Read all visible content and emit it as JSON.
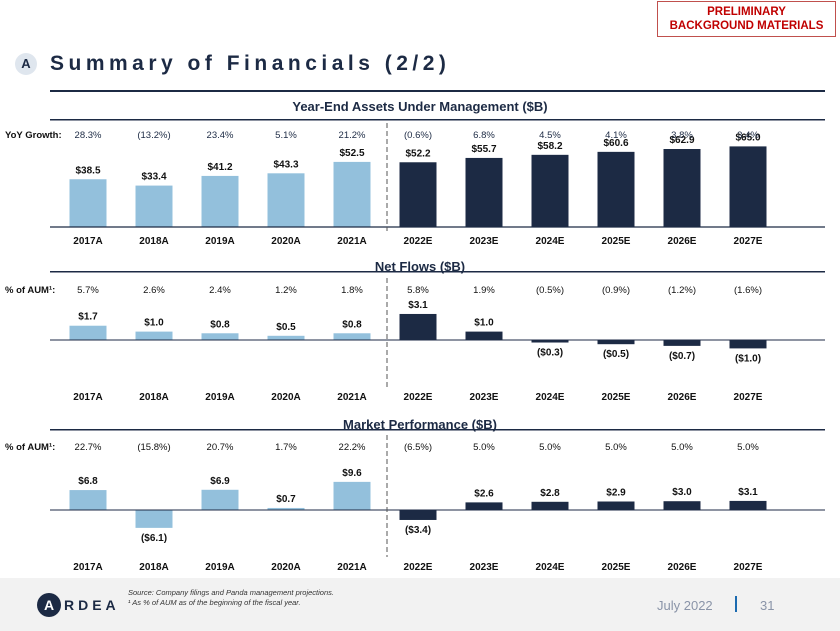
{
  "stamp": {
    "line1": "PRELIMINARY",
    "line2": "BACKGROUND MATERIALS"
  },
  "section_badge": "A",
  "page_title": "Summary of Financials (2/2)",
  "colors": {
    "actual": "#93c0dc",
    "estimate": "#1c2a44",
    "accent": "#1c6bb0",
    "stamp": "#c00000"
  },
  "chart_data": [
    {
      "type": "bar",
      "title": "Year-End Assets Under Management ($B)",
      "row_label": "YoY Growth:",
      "categories": [
        "2017A",
        "2018A",
        "2019A",
        "2020A",
        "2021A",
        "2022E",
        "2023E",
        "2024E",
        "2025E",
        "2026E",
        "2027E"
      ],
      "values": [
        38.5,
        33.4,
        41.2,
        43.3,
        52.5,
        52.2,
        55.7,
        58.2,
        60.6,
        62.9,
        65.0
      ],
      "value_labels": [
        "$38.5",
        "$33.4",
        "$41.2",
        "$43.3",
        "$52.5",
        "$52.2",
        "$55.7",
        "$58.2",
        "$60.6",
        "$62.9",
        "$65.0"
      ],
      "row_values": [
        "28.3%",
        "(13.2%)",
        "23.4%",
        "5.1%",
        "21.2%",
        "(0.6%)",
        "6.8%",
        "4.5%",
        "4.1%",
        "3.8%",
        "3.4%"
      ]
    },
    {
      "type": "bar",
      "title": "Net Flows ($B)",
      "row_label": "% of AUM¹:",
      "categories": [
        "2017A",
        "2018A",
        "2019A",
        "2020A",
        "2021A",
        "2022E",
        "2023E",
        "2024E",
        "2025E",
        "2026E",
        "2027E"
      ],
      "values": [
        1.7,
        1.0,
        0.8,
        0.5,
        0.8,
        3.1,
        1.0,
        -0.3,
        -0.5,
        -0.7,
        -1.0
      ],
      "value_labels": [
        "$1.7",
        "$1.0",
        "$0.8",
        "$0.5",
        "$0.8",
        "$3.1",
        "$1.0",
        "($0.3)",
        "($0.5)",
        "($0.7)",
        "($1.0)"
      ],
      "row_values": [
        "5.7%",
        "2.6%",
        "2.4%",
        "1.2%",
        "1.8%",
        "5.8%",
        "1.9%",
        "(0.5%)",
        "(0.9%)",
        "(1.2%)",
        "(1.6%)"
      ]
    },
    {
      "type": "bar",
      "title": "Market Performance ($B)",
      "row_label": "% of AUM¹:",
      "categories": [
        "2017A",
        "2018A",
        "2019A",
        "2020A",
        "2021A",
        "2022E",
        "2023E",
        "2024E",
        "2025E",
        "2026E",
        "2027E"
      ],
      "values": [
        6.8,
        -6.1,
        6.9,
        0.7,
        9.6,
        -3.4,
        2.6,
        2.8,
        2.9,
        3.0,
        3.1
      ],
      "value_labels": [
        "$6.8",
        "($6.1)",
        "$6.9",
        "$0.7",
        "$9.6",
        "($3.4)",
        "$2.6",
        "$2.8",
        "$2.9",
        "$3.0",
        "$3.1"
      ],
      "row_values": [
        "22.7%",
        "(15.8%)",
        "20.7%",
        "1.7%",
        "22.2%",
        "(6.5%)",
        "5.0%",
        "5.0%",
        "5.0%",
        "5.0%",
        "5.0%"
      ]
    }
  ],
  "footer": {
    "logo_initial": "A",
    "logo_rest": "RDEA",
    "source": "Source: Company filings and Panda management projections.",
    "footnote": "¹ As % of AUM as of the beginning of the fiscal year.",
    "date": "July 2022",
    "page_number": "31"
  }
}
